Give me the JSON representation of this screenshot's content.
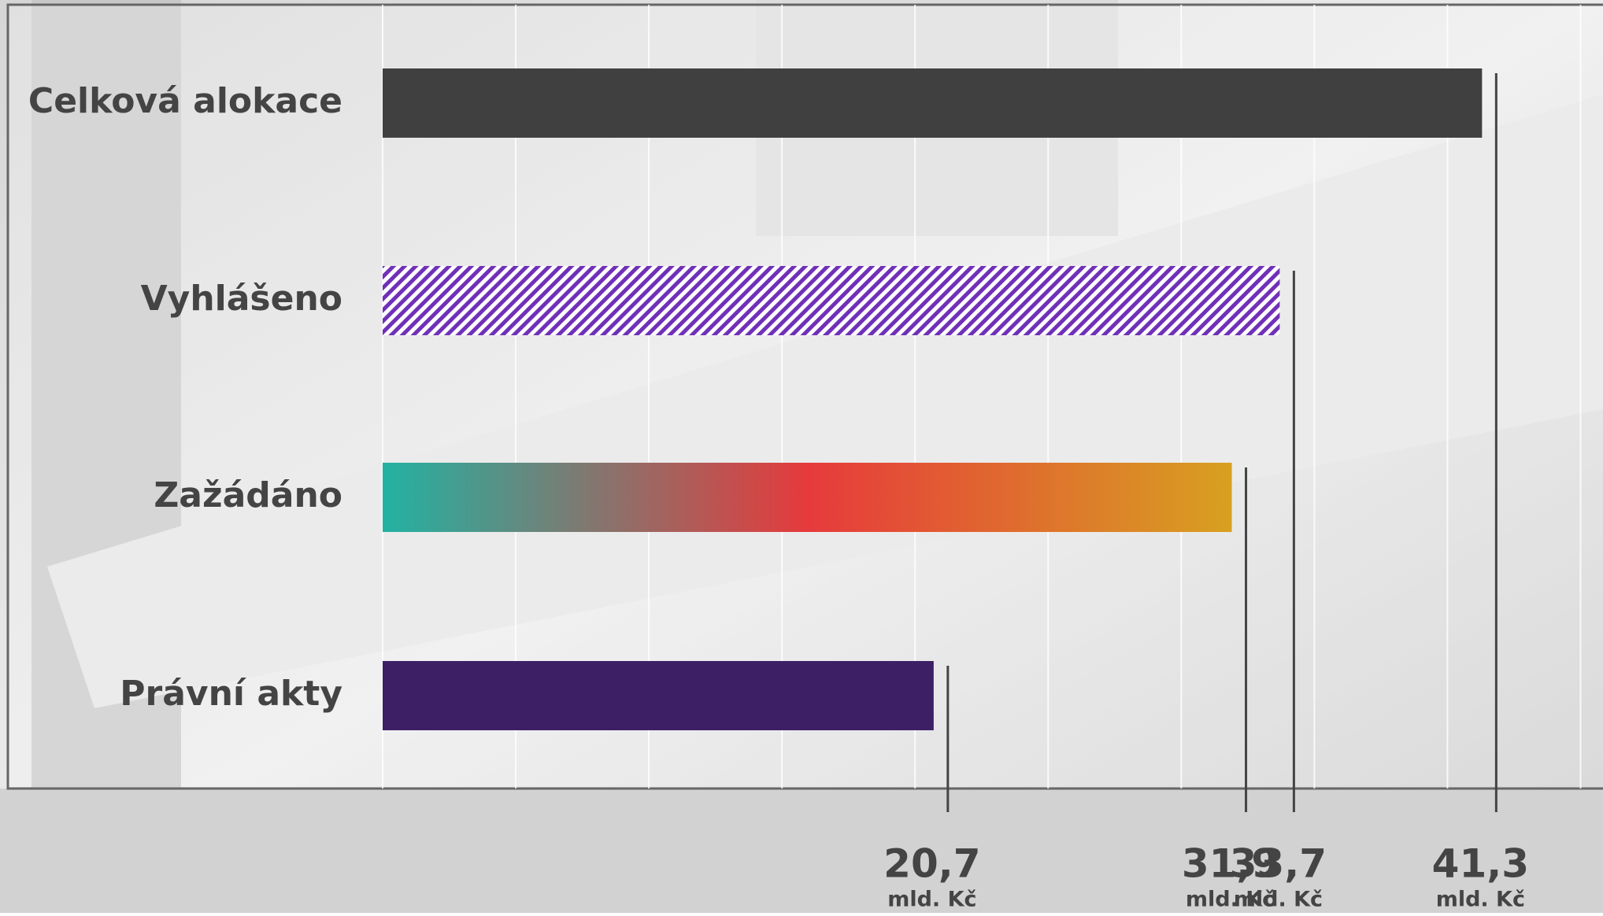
{
  "chart_data": {
    "type": "bar",
    "orientation": "horizontal",
    "categories": [
      "Celková alokace",
      "Vyhlášeno",
      "Zažádáno",
      "Právní akty"
    ],
    "values": [
      41.3,
      33.7,
      31.9,
      20.7
    ],
    "value_labels": [
      "41,3",
      "33,7",
      "31,9",
      "20,7"
    ],
    "unit_label": "mld. Kč",
    "fills": [
      "solid",
      "hatch",
      "gradient",
      "solid"
    ],
    "colors": [
      "#404040",
      "#7030b8",
      [
        "#22b2a2",
        "#e63a3c",
        "#d8a020"
      ],
      "#3d1f66"
    ],
    "xlim": [
      0,
      46
    ],
    "xticks": [
      0,
      5,
      10,
      15,
      20,
      25,
      30,
      35,
      40,
      45
    ],
    "grid": true
  }
}
